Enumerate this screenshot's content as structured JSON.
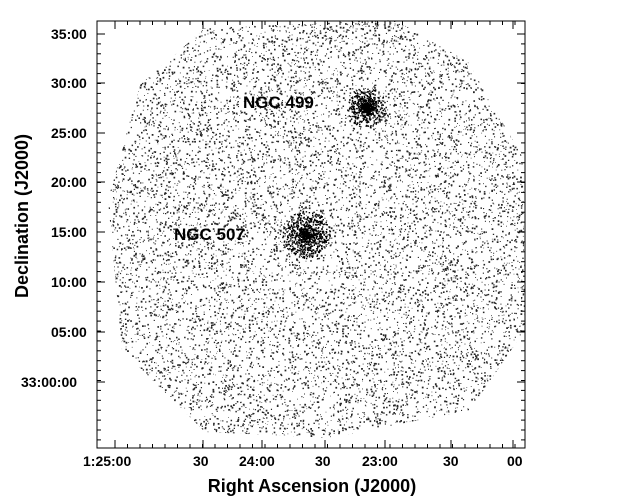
{
  "figure": {
    "xlabel": "Right Ascension (J2000)",
    "ylabel": "Declination (J2000)",
    "x_ticks": [
      "1:25:00",
      "30",
      "24:00",
      "30",
      "23:00",
      "30",
      "00"
    ],
    "y_ticks": [
      "35:00",
      "30:00",
      "25:00",
      "20:00",
      "15:00",
      "10:00",
      "05:00",
      "33:00:00"
    ],
    "annotations": [
      {
        "label": "NGC 499"
      },
      {
        "label": "NGC 507"
      }
    ],
    "colors": {
      "background": "#ffffff",
      "counts": "#000000"
    }
  }
}
